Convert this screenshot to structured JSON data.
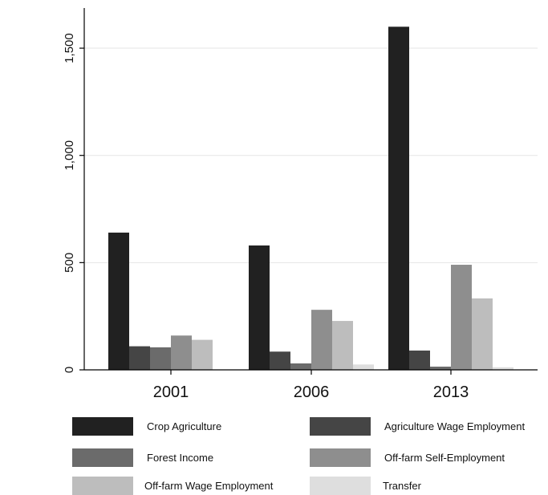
{
  "chart_data": {
    "type": "bar",
    "categories": [
      "2001",
      "2006",
      "2013"
    ],
    "series": [
      {
        "name": "Crop Agriculture",
        "color": "#212121",
        "values": [
          640,
          580,
          1600
        ]
      },
      {
        "name": "Agriculture Wage Employment",
        "color": "#454545",
        "values": [
          110,
          85,
          90
        ]
      },
      {
        "name": "Forest Income",
        "color": "#6b6b6b",
        "values": [
          105,
          30,
          15
        ]
      },
      {
        "name": "Off-farm Self-Employment",
        "color": "#8e8e8e",
        "values": [
          160,
          280,
          490
        ]
      },
      {
        "name": "Off-farm Wage Employment",
        "color": "#bdbdbd",
        "values": [
          140,
          228,
          333
        ]
      },
      {
        "name": "Transfer",
        "color": "#dedede",
        "values": [
          0,
          25,
          12
        ]
      }
    ],
    "yticks": [
      0,
      500,
      1000,
      1500
    ],
    "ytick_labels": [
      "0",
      "500",
      "1,000",
      "1,500"
    ],
    "ylim": [
      0,
      1600
    ],
    "grid": true,
    "legend_position": "bottom",
    "title": "",
    "xlabel": "",
    "ylabel": ""
  }
}
